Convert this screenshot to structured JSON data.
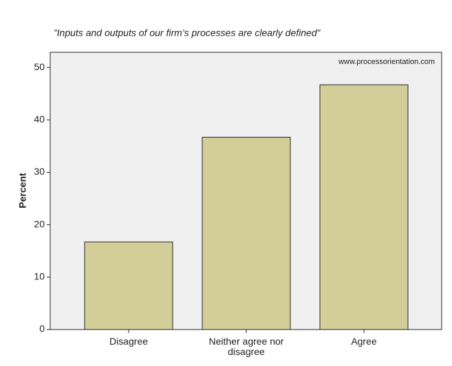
{
  "chart_data": {
    "type": "bar",
    "title": "”Inputs and outputs of our firm’s processes are clearly defined”",
    "annotation": "www.processorientation.com",
    "y_label": "Percent",
    "categories": [
      "Disagree",
      "Neither agree nor disagree",
      "Agree"
    ],
    "values": [
      16.7,
      36.7,
      46.7
    ],
    "color": "#d3ce97",
    "ylim": [
      0,
      52.9
    ],
    "yticks": [
      0,
      10,
      20,
      30,
      40,
      50
    ],
    "grid": false
  }
}
